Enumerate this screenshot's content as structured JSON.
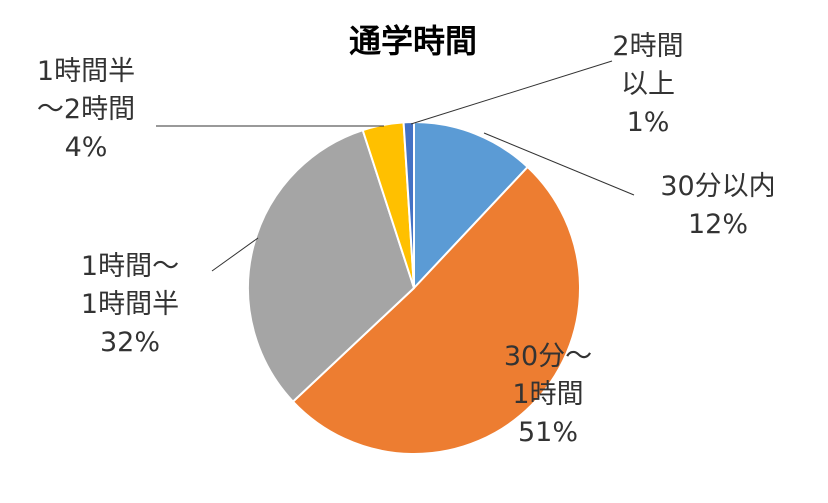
{
  "chart_data": {
    "type": "pie",
    "title": "通学時間",
    "slices": [
      {
        "label_lines": [
          "30分以内",
          "12%"
        ],
        "value": 12,
        "color": "#5B9BD5"
      },
      {
        "label_lines": [
          "30分～",
          "1時間",
          "51%"
        ],
        "value": 51,
        "color": "#ED7D31"
      },
      {
        "label_lines": [
          "1時間～",
          "1時間半",
          "32%"
        ],
        "value": 32,
        "color": "#A5A5A5"
      },
      {
        "label_lines": [
          "1時間半",
          "～2時間",
          "4%"
        ],
        "value": 4,
        "color": "#FFC000"
      },
      {
        "label_lines": [
          "2時間",
          "以上",
          "1%"
        ],
        "value": 1,
        "color": "#4472C4"
      }
    ],
    "legend": "none"
  }
}
